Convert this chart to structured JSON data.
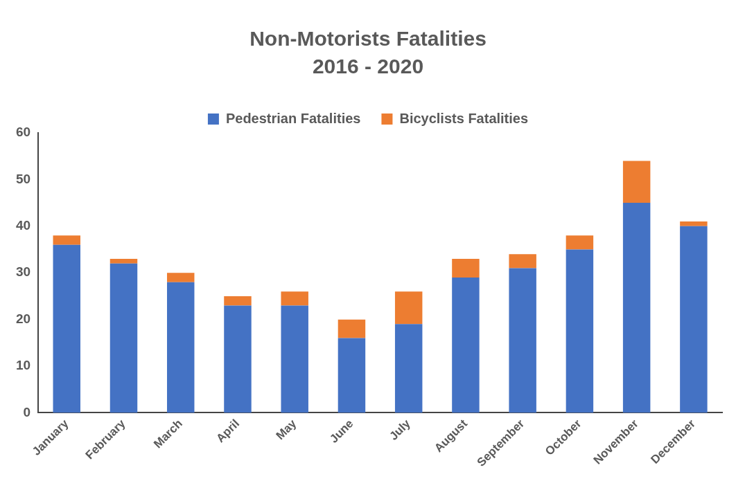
{
  "chart_data": {
    "type": "bar",
    "title": "Non-Motorists Fatalities",
    "subtitle": "2016 - 2020",
    "categories": [
      "January",
      "February",
      "March",
      "April",
      "May",
      "June",
      "July",
      "August",
      "September",
      "October",
      "November",
      "December"
    ],
    "series": [
      {
        "name": "Pedestrian Fatalities",
        "color": "#4472c4",
        "values": [
          36,
          32,
          28,
          23,
          23,
          16,
          19,
          29,
          31,
          35,
          45,
          40
        ]
      },
      {
        "name": "Bicyclists Fatalities",
        "color": "#ed7d31",
        "values": [
          2,
          1,
          2,
          2,
          3,
          4,
          7,
          4,
          3,
          3,
          9,
          1
        ]
      }
    ],
    "stacked": true,
    "ylim": [
      0,
      60
    ],
    "yticks": [
      0,
      10,
      20,
      30,
      40,
      50,
      60
    ],
    "grid": false,
    "legend": "top"
  }
}
